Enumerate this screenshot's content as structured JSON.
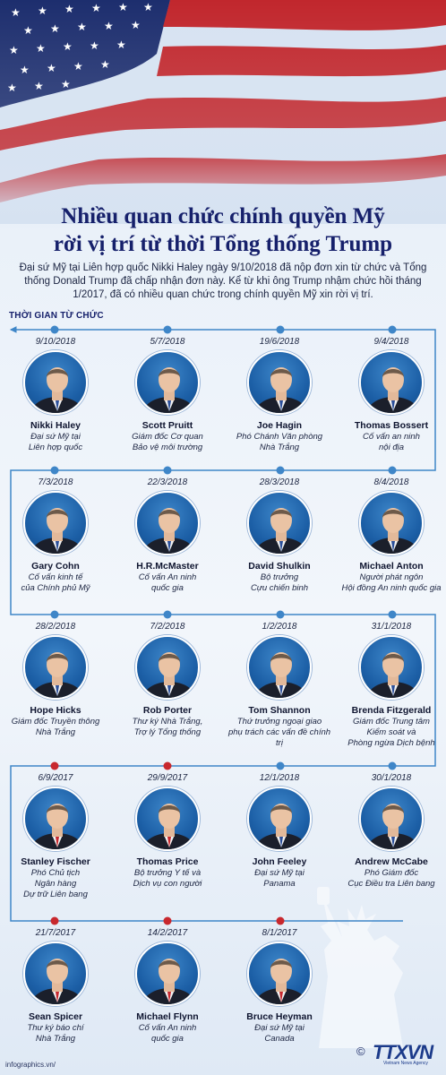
{
  "header": {
    "title_line1": "Nhiều quan chức chính quyền Mỹ",
    "title_line2": "rời vị trí từ thời Tổng thống Trump",
    "intro": "Đại sứ Mỹ tại Liên hợp quốc Nikki Haley ngày 9/10/2018 đã nộp đơn xin từ chức và Tổng thống Donald Trump đã chấp nhận đơn này. Kể từ khi ông Trump nhậm chức hồi tháng 1/2017, đã có nhiều quan chức trong chính quyền Mỹ xin rời vị trí."
  },
  "section_label": "THỜI GIAN TỪ CHỨC",
  "colors": {
    "title": "#16206b",
    "timeline_blue": "#3f86c8",
    "timeline_red": "#c8282e",
    "photo_bg": "#1c5fa6"
  },
  "people": [
    {
      "date": "9/10/2018",
      "name": "Nikki Haley",
      "role": "Đại sứ Mỹ tại\nLiên hợp quốc",
      "dot": "blue"
    },
    {
      "date": "5/7/2018",
      "name": "Scott Pruitt",
      "role": "Giám đốc Cơ quan\nBảo vệ môi trường",
      "dot": "blue"
    },
    {
      "date": "19/6/2018",
      "name": "Joe Hagin",
      "role": "Phó Chánh Văn phòng\nNhà Trắng",
      "dot": "blue"
    },
    {
      "date": "9/4/2018",
      "name": "Thomas Bossert",
      "role": "Cố vấn an ninh\nnội địa",
      "dot": "blue"
    },
    {
      "date": "7/3/2018",
      "name": "Gary Cohn",
      "role": "Cố vấn kinh tế\ncủa Chính phủ Mỹ",
      "dot": "blue"
    },
    {
      "date": "22/3/2018",
      "name": "H.R.McMaster",
      "role": "Cố vấn An ninh\nquốc gia",
      "dot": "blue"
    },
    {
      "date": "28/3/2018",
      "name": "David Shulkin",
      "role": "Bộ trưởng\nCựu chiến binh",
      "dot": "blue"
    },
    {
      "date": "8/4/2018",
      "name": "Michael Anton",
      "role": "Người phát ngôn\nHội đồng An ninh quốc gia",
      "dot": "blue"
    },
    {
      "date": "28/2/2018",
      "name": "Hope Hicks",
      "role": "Giám đốc Truyền thông\nNhà Trắng",
      "dot": "blue"
    },
    {
      "date": "7/2/2018",
      "name": "Rob Porter",
      "role": "Thư ký Nhà Trắng,\nTrợ lý Tổng thống",
      "dot": "blue"
    },
    {
      "date": "1/2/2018",
      "name": "Tom Shannon",
      "role": "Thứ trưởng ngoại giao\nphụ trách các vấn đề chính trị",
      "dot": "blue"
    },
    {
      "date": "31/1/2018",
      "name": "Brenda Fitzgerald",
      "role": "Giám đốc Trung tâm\nKiểm soát và\nPhòng ngừa Dịch bệnh",
      "dot": "blue"
    },
    {
      "date": "6/9/2017",
      "name": "Stanley Fischer",
      "role": "Phó Chủ tịch\nNgân hàng\nDự trữ Liên bang",
      "dot": "red"
    },
    {
      "date": "29/9/2017",
      "name": "Thomas Price",
      "role": "Bộ trưởng Y tế và\nDịch vụ con người",
      "dot": "red"
    },
    {
      "date": "12/1/2018",
      "name": "John Feeley",
      "role": "Đại sứ Mỹ tại\nPanama",
      "dot": "blue"
    },
    {
      "date": "30/1/2018",
      "name": "Andrew McCabe",
      "role": "Phó Giám đốc\nCục Điều tra Liên bang",
      "dot": "blue"
    },
    {
      "date": "21/7/2017",
      "name": "Sean Spicer",
      "role": "Thư ký báo chí\nNhà Trắng",
      "dot": "red"
    },
    {
      "date": "14/2/2017",
      "name": "Michael Flynn",
      "role": "Cố vấn An ninh\nquốc gia",
      "dot": "red"
    },
    {
      "date": "8/1/2017",
      "name": "Bruce Heyman",
      "role": "Đại sứ Mỹ tại\nCanada",
      "dot": "red"
    }
  ],
  "footer": {
    "site": "infographics.vn/",
    "copyright": "©",
    "brand": "TTXVN",
    "brand_sub": "Vietnam News Agency"
  }
}
